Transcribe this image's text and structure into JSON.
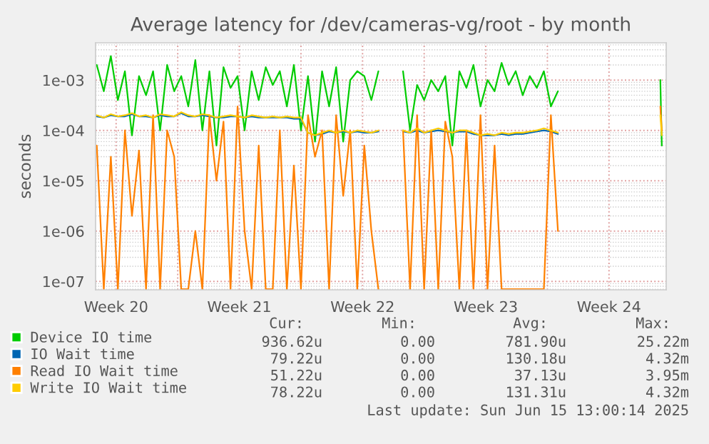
{
  "chart_data": {
    "type": "line",
    "title": "Average latency for /dev/cameras-vg/root - by month",
    "ylabel": "seconds",
    "log": "y",
    "ylim": [
      6.8e-08,
      0.0055
    ],
    "yticks": [
      {
        "value": 1e-07,
        "label": "1e-07"
      },
      {
        "value": 1e-06,
        "label": "1e-06"
      },
      {
        "value": 1e-05,
        "label": "1e-05"
      },
      {
        "value": 0.0001,
        "label": "1e-04"
      },
      {
        "value": 0.001,
        "label": "1e-03"
      }
    ],
    "xlim": [
      "2025-05-14T08:00",
      "2025-06-15T18:00"
    ],
    "xticks": [
      {
        "value": "2025-05-15T12:00",
        "label": "Week 20"
      },
      {
        "value": "2025-05-19",
        "label": null
      },
      {
        "value": "2025-05-22T12:00",
        "label": "Week 21"
      },
      {
        "value": "2025-05-26",
        "label": null
      },
      {
        "value": "2025-05-29T12:00",
        "label": "Week 22"
      },
      {
        "value": "2025-06-02",
        "label": null
      },
      {
        "value": "2025-06-05T12:00",
        "label": "Week 23"
      },
      {
        "value": "2025-06-09",
        "label": null
      },
      {
        "value": "2025-06-12T12:00",
        "label": "Week 24"
      }
    ],
    "grid": true,
    "legend": "bottom",
    "line_style": "solid",
    "marker": "none",
    "x": [
      "2025-05-14T09:36",
      "2025-05-14T19:12",
      "2025-05-15T04:48",
      "2025-05-15T14:24",
      "2025-05-16T00:00",
      "2025-05-16T09:36",
      "2025-05-16T19:12",
      "2025-05-17T04:48",
      "2025-05-17T14:24",
      "2025-05-18T00:00",
      "2025-05-18T09:36",
      "2025-05-18T19:12",
      "2025-05-19T04:48",
      "2025-05-19T14:24",
      "2025-05-20T00:00",
      "2025-05-20T09:36",
      "2025-05-20T19:12",
      "2025-05-21T04:48",
      "2025-05-21T14:24",
      "2025-05-22T00:00",
      "2025-05-22T09:36",
      "2025-05-22T19:12",
      "2025-05-23T04:48",
      "2025-05-23T14:24",
      "2025-05-24T00:00",
      "2025-05-24T09:36",
      "2025-05-24T19:12",
      "2025-05-25T04:48",
      "2025-05-25T14:24",
      "2025-05-26T00:00",
      "2025-05-26T09:36",
      "2025-05-26T19:12",
      "2025-05-27T04:48",
      "2025-05-27T14:24",
      "2025-05-28T00:00",
      "2025-05-28T09:36",
      "2025-05-28T19:12",
      "2025-05-29T04:48",
      "2025-05-29T14:24",
      "2025-05-30T00:00",
      "2025-05-30T09:36",
      "2025-05-31T00:00",
      "2025-05-31T19:12",
      "2025-06-01T04:48",
      "2025-06-01T14:24",
      "2025-06-02T00:00",
      "2025-06-02T09:36",
      "2025-06-02T19:12",
      "2025-06-03T04:48",
      "2025-06-03T14:24",
      "2025-06-04T00:00",
      "2025-06-04T09:36",
      "2025-06-04T19:12",
      "2025-06-05T04:48",
      "2025-06-05T14:24",
      "2025-06-06T00:00",
      "2025-06-06T09:36",
      "2025-06-06T19:12",
      "2025-06-07T04:48",
      "2025-06-07T14:24",
      "2025-06-08T00:00",
      "2025-06-08T09:36",
      "2025-06-08T19:12",
      "2025-06-09T04:48",
      "2025-06-09T14:24",
      "2025-06-13T00:00",
      "2025-06-15T10:00",
      "2025-06-15T12:00"
    ],
    "series": [
      {
        "name": "Device IO time",
        "color": "#00cc00",
        "values": [
          0.002,
          0.0006,
          0.003,
          0.0004,
          0.0015,
          8e-05,
          0.0012,
          0.0005,
          0.0015,
          0.0001,
          0.002,
          0.0006,
          0.0012,
          0.0003,
          0.0025,
          0.0001,
          0.0015,
          5e-05,
          0.0018,
          0.0007,
          0.0012,
          0.0001,
          0.0015,
          0.0004,
          0.0018,
          0.0008,
          0.0015,
          0.0003,
          0.002,
          0.0001,
          0.0012,
          6e-05,
          0.0015,
          0.0003,
          0.0018,
          6e-05,
          0.001,
          0.0015,
          0.0012,
          0.0004,
          0.0015,
          null,
          0.0015,
          0.0001,
          0.0008,
          0.0004,
          0.001,
          0.0006,
          0.0012,
          5e-05,
          0.0015,
          0.0007,
          0.002,
          0.0003,
          0.001,
          0.0006,
          0.0022,
          0.0008,
          0.0015,
          0.0005,
          0.0012,
          0.0007,
          0.0015,
          0.0003,
          0.0006,
          null,
          0.001,
          5e-05
        ]
      },
      {
        "name": "IO Wait time",
        "color": "#0066b3",
        "values": [
          0.00019,
          0.00018,
          0.0002,
          0.00019,
          0.00019,
          0.00021,
          0.00019,
          0.00019,
          0.00018,
          0.0002,
          0.00019,
          0.00019,
          0.00022,
          0.00019,
          0.00019,
          0.0002,
          0.00019,
          0.00018,
          0.00018,
          0.00019,
          0.00019,
          0.00018,
          0.00019,
          0.00018,
          0.00018,
          0.00018,
          0.00018,
          0.00018,
          0.00017,
          0.00017,
          9e-05,
          8e-05,
          8.5e-05,
          9.5e-05,
          9e-05,
          9.5e-05,
          9e-05,
          9.5e-05,
          9e-05,
          9e-05,
          9.5e-05,
          null,
          9.5e-05,
          9e-05,
          0.0001,
          9e-05,
          9.5e-05,
          0.0001,
          9.5e-05,
          9e-05,
          9.5e-05,
          9.5e-05,
          8.5e-05,
          8e-05,
          8e-05,
          8e-05,
          8.5e-05,
          8e-05,
          8.5e-05,
          8.5e-05,
          9e-05,
          9.5e-05,
          0.0001,
          9.5e-05,
          8.5e-05,
          null,
          null,
          null
        ]
      },
      {
        "name": "Read IO Wait time",
        "color": "#ff8000",
        "values": [
          5e-05,
          7e-08,
          3e-05,
          7e-08,
          0.0001,
          2e-06,
          4e-05,
          7e-08,
          0.0002,
          7e-08,
          0.0001,
          3e-05,
          7e-08,
          7e-08,
          1e-06,
          7e-08,
          0.0002,
          1e-05,
          0.00015,
          7e-08,
          0.0003,
          1e-06,
          7e-08,
          5e-05,
          7e-08,
          7e-08,
          0.0001,
          7e-08,
          2e-05,
          7e-08,
          0.0002,
          3e-05,
          0.0001,
          7e-08,
          0.0002,
          5e-06,
          0.0001,
          7e-08,
          5e-05,
          1e-06,
          7e-08,
          null,
          0.0001,
          7e-08,
          0.0002,
          7e-08,
          0.0001,
          7e-08,
          0.00015,
          3e-05,
          7e-08,
          0.0001,
          7e-08,
          0.0002,
          7e-08,
          5e-05,
          7e-08,
          7e-08,
          7e-08,
          7e-08,
          7e-08,
          7e-08,
          7e-08,
          0.0002,
          1e-06,
          null,
          0.0003,
          0.0001
        ]
      },
      {
        "name": "Write IO Wait time",
        "color": "#ffcc00",
        "values": [
          0.0002,
          0.00018,
          0.00021,
          0.00019,
          0.0002,
          0.00022,
          0.00019,
          0.0002,
          0.00018,
          0.00021,
          0.0002,
          0.00019,
          0.00023,
          0.0002,
          0.00019,
          0.00021,
          0.0002,
          0.00018,
          0.00019,
          0.0002,
          0.00019,
          0.00018,
          0.0002,
          0.00019,
          0.00018,
          0.00019,
          0.00018,
          0.00019,
          0.00018,
          0.00018,
          9e-05,
          8e-05,
          9e-05,
          0.0001,
          9e-05,
          0.0001,
          9e-05,
          0.0001,
          9.5e-05,
          9e-05,
          0.0001,
          null,
          0.0001,
          9e-05,
          0.00011,
          9e-05,
          0.0001,
          0.00011,
          0.0001,
          9e-05,
          0.0001,
          0.0001,
          9e-05,
          8e-05,
          8.5e-05,
          8e-05,
          9e-05,
          8.5e-05,
          9e-05,
          9e-05,
          9.5e-05,
          0.0001,
          0.00011,
          0.0001,
          9e-05,
          null,
          0.0002,
          8e-05
        ]
      }
    ],
    "annotations": [
      "Cur:",
      "Min:",
      "Avg:",
      "Max:",
      "936.62u",
      "0.00",
      "781.90u",
      "25.22m",
      "79.22u",
      "0.00",
      "130.18u",
      "4.32m",
      "51.22u",
      "0.00",
      "37.13u",
      "3.95m",
      "78.22u",
      "0.00",
      "131.31u",
      "4.32m",
      "Last update: Sun Jun 15 13:00:14 2025"
    ]
  }
}
